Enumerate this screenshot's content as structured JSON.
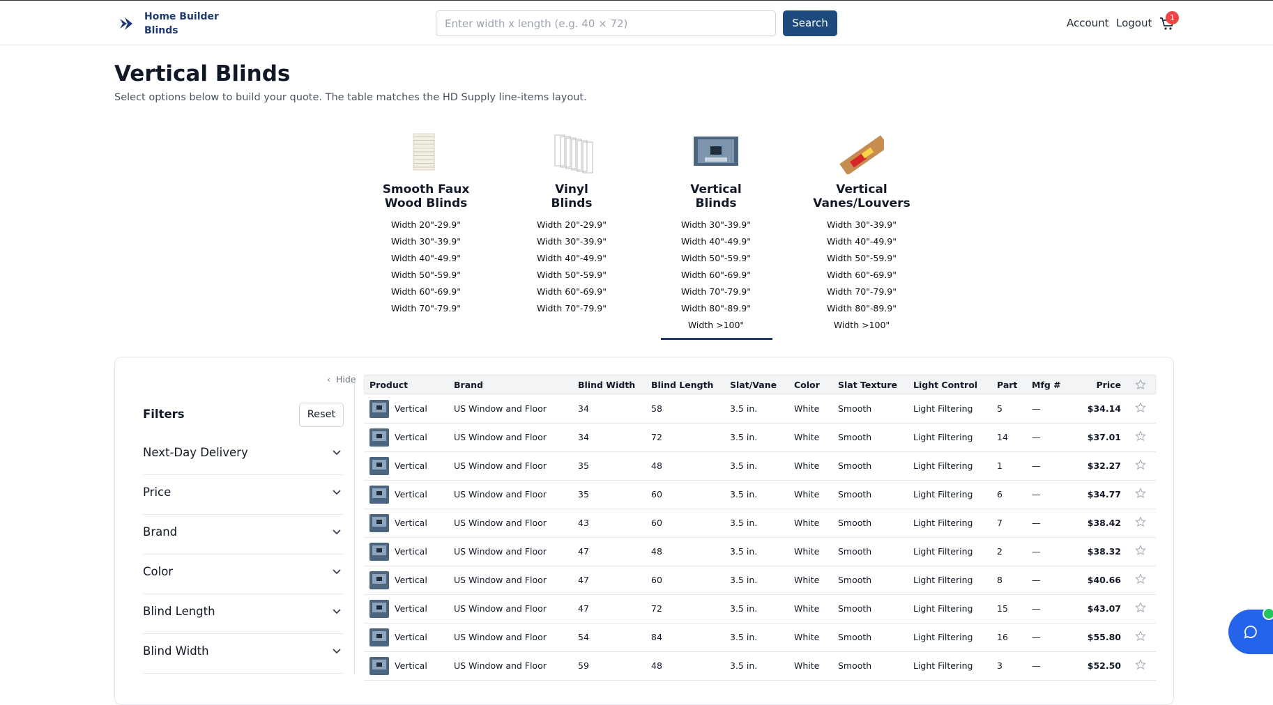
{
  "header": {
    "logo_lines": [
      "Home Builder",
      "Blinds"
    ],
    "search_placeholder": "Enter width x length (e.g. 40 × 72)",
    "search_button": "Search",
    "nav": [
      "Account",
      "Logout"
    ],
    "cart_count": "1"
  },
  "page": {
    "title": "Vertical Blinds",
    "subtitle": "Select options below to build your quote. The table matches the HD Supply line-items layout."
  },
  "categories": [
    {
      "name": [
        "Smooth Faux",
        "Wood Blinds"
      ],
      "widths": [
        "Width 20\"-29.9\"",
        "Width 30\"-39.9\"",
        "Width 40\"-49.9\"",
        "Width 50\"-59.9\"",
        "Width 60\"-69.9\"",
        "Width 70\"-79.9\""
      ]
    },
    {
      "name": [
        "Vinyl",
        "Blinds"
      ],
      "widths": [
        "Width 20\"-29.9\"",
        "Width 30\"-39.9\"",
        "Width 40\"-49.9\"",
        "Width 50\"-59.9\"",
        "Width 60\"-69.9\"",
        "Width 70\"-79.9\""
      ]
    },
    {
      "name": [
        "Vertical",
        "Blinds"
      ],
      "widths": [
        "Width 30\"-39.9\"",
        "Width 40\"-49.9\"",
        "Width 50\"-59.9\"",
        "Width 60\"-69.9\"",
        "Width 70\"-79.9\"",
        "Width 80\"-89.9\"",
        "Width >100\""
      ]
    },
    {
      "name": [
        "Vertical",
        "Vanes/Louvers"
      ],
      "widths": [
        "Width 30\"-39.9\"",
        "Width 40\"-49.9\"",
        "Width 50\"-59.9\"",
        "Width 60\"-69.9\"",
        "Width 70\"-79.9\"",
        "Width 80\"-89.9\"",
        "Width >100\""
      ]
    }
  ],
  "filters": {
    "hide": "Hide",
    "title": "Filters",
    "reset": "Reset",
    "items": [
      "Next-Day Delivery",
      "Price",
      "Brand",
      "Color",
      "Blind Length",
      "Blind Width"
    ]
  },
  "table": {
    "columns": [
      "Product",
      "Brand",
      "Blind Width",
      "Blind Length",
      "Slat/Vane",
      "Color",
      "Slat Texture",
      "Light Control",
      "Part",
      "Mfg #",
      "Price"
    ],
    "rows": [
      [
        "Vertical",
        "US Window and Floor",
        "34",
        "58",
        "3.5 in.",
        "White",
        "Smooth",
        "Light Filtering",
        "5",
        "—",
        "$34.14"
      ],
      [
        "Vertical",
        "US Window and Floor",
        "34",
        "72",
        "3.5 in.",
        "White",
        "Smooth",
        "Light Filtering",
        "14",
        "—",
        "$37.01"
      ],
      [
        "Vertical",
        "US Window and Floor",
        "35",
        "48",
        "3.5 in.",
        "White",
        "Smooth",
        "Light Filtering",
        "1",
        "—",
        "$32.27"
      ],
      [
        "Vertical",
        "US Window and Floor",
        "35",
        "60",
        "3.5 in.",
        "White",
        "Smooth",
        "Light Filtering",
        "6",
        "—",
        "$34.77"
      ],
      [
        "Vertical",
        "US Window and Floor",
        "43",
        "60",
        "3.5 in.",
        "White",
        "Smooth",
        "Light Filtering",
        "7",
        "—",
        "$38.42"
      ],
      [
        "Vertical",
        "US Window and Floor",
        "47",
        "48",
        "3.5 in.",
        "White",
        "Smooth",
        "Light Filtering",
        "2",
        "—",
        "$38.32"
      ],
      [
        "Vertical",
        "US Window and Floor",
        "47",
        "60",
        "3.5 in.",
        "White",
        "Smooth",
        "Light Filtering",
        "8",
        "—",
        "$40.66"
      ],
      [
        "Vertical",
        "US Window and Floor",
        "47",
        "72",
        "3.5 in.",
        "White",
        "Smooth",
        "Light Filtering",
        "15",
        "—",
        "$43.07"
      ],
      [
        "Vertical",
        "US Window and Floor",
        "54",
        "84",
        "3.5 in.",
        "White",
        "Smooth",
        "Light Filtering",
        "16",
        "—",
        "$55.80"
      ],
      [
        "Vertical",
        "US Window and Floor",
        "59",
        "48",
        "3.5 in.",
        "White",
        "Smooth",
        "Light Filtering",
        "3",
        "—",
        "$52.50"
      ]
    ]
  }
}
